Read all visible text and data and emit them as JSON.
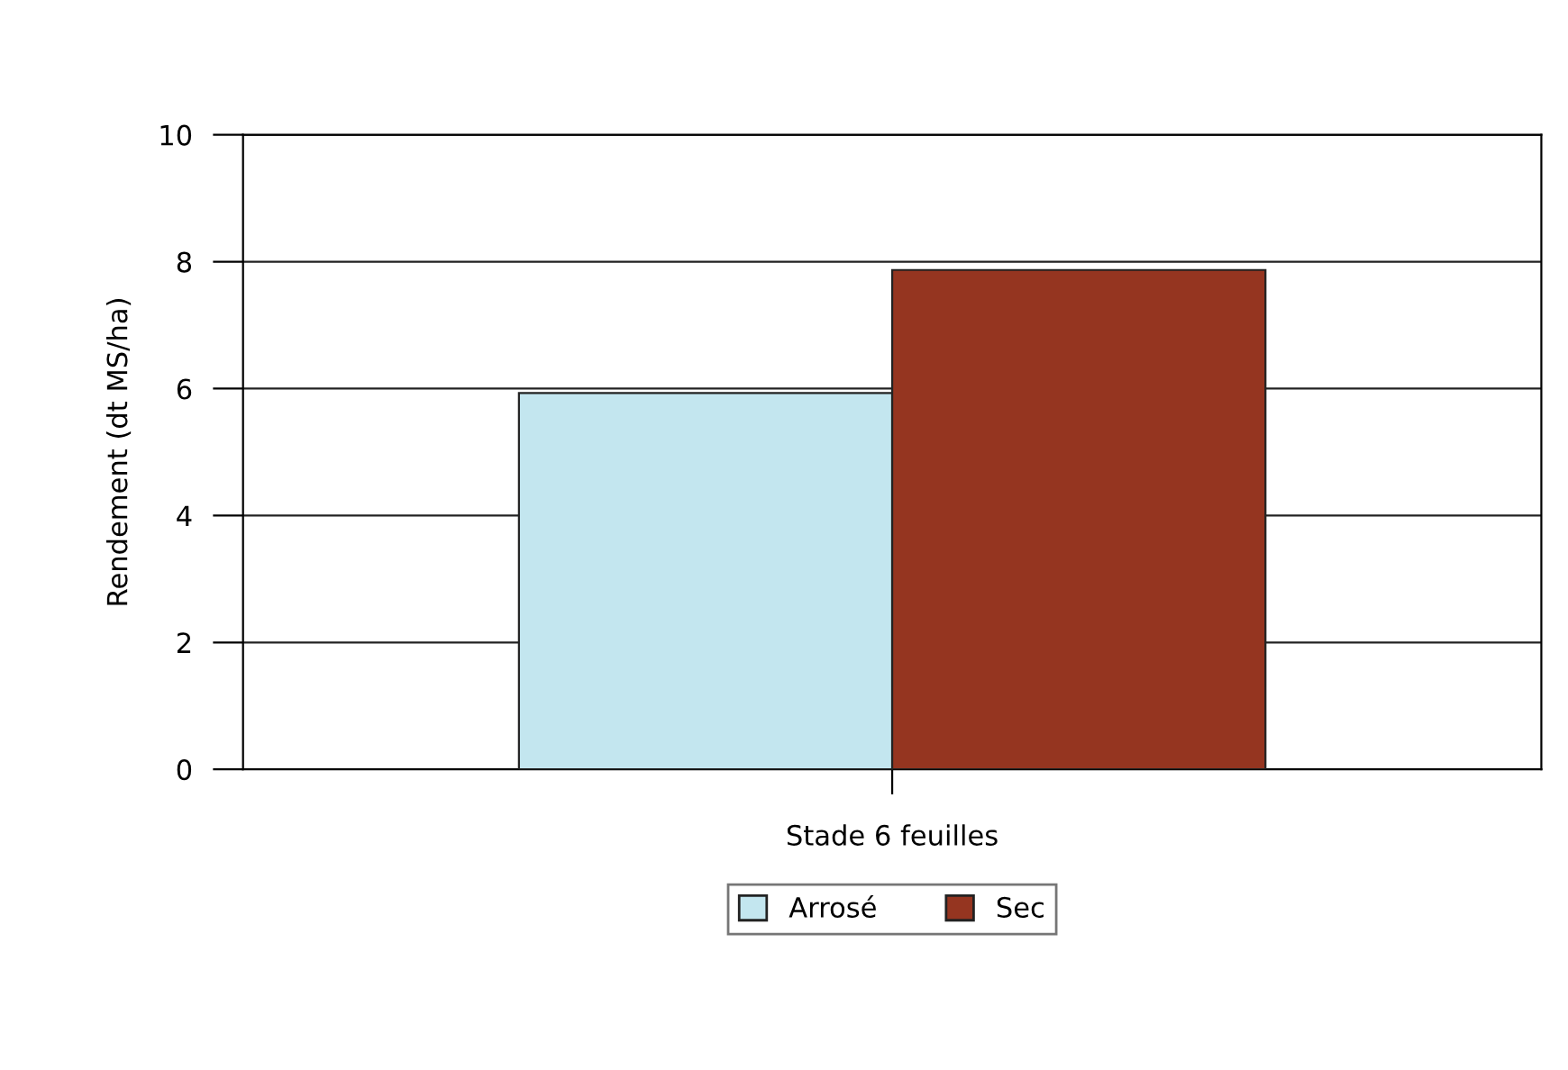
{
  "chart_data": {
    "type": "bar",
    "categories": [
      "Stade 6 feuilles"
    ],
    "ylabel": "Rendement (dt MS/ha)",
    "series": [
      {
        "name": "Arrosé",
        "color": "#c3e6ef",
        "values": [
          5.93
        ]
      },
      {
        "name": "Sec",
        "color": "#953520",
        "values": [
          7.87
        ]
      }
    ],
    "ylim": [
      0,
      10
    ],
    "yticks": [
      0,
      2,
      4,
      6,
      8,
      10
    ],
    "grid": "y",
    "legend": "bottom"
  }
}
